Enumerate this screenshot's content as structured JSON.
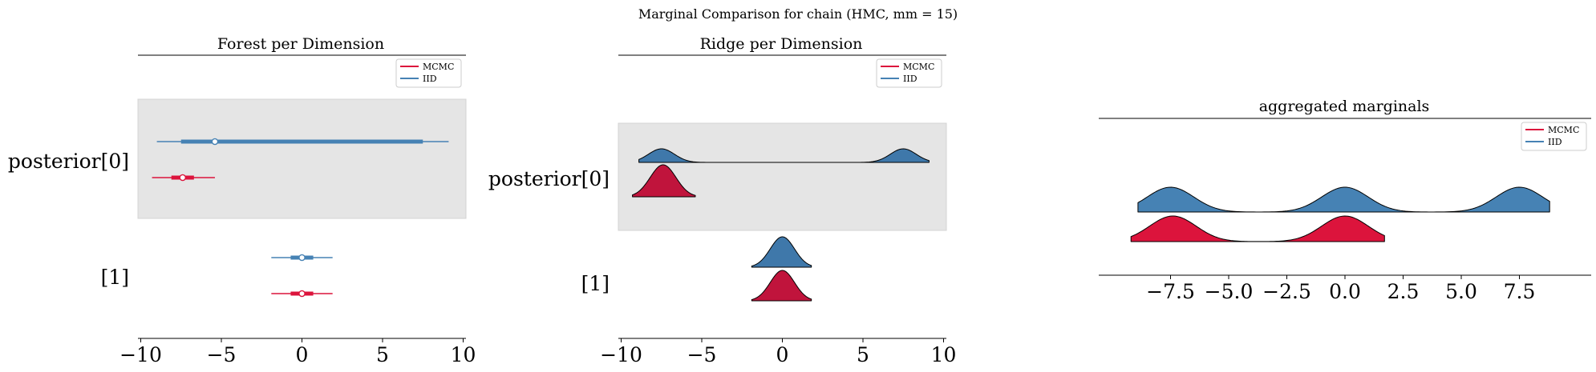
{
  "suptitle": "Marginal Comparison for chain (HMC, mm = 15)",
  "colors": {
    "mcmc": "#dc143c",
    "iid": "#4682b4",
    "band": "#e5e5e5",
    "ridge_mcmc": "#c0143c",
    "ridge_iid": "#3f78aa"
  },
  "chart_data": [
    {
      "type": "forest",
      "title": "Forest per Dimension",
      "xlim": [
        -10,
        10
      ],
      "xticks": [
        -10,
        -5,
        0,
        5,
        10
      ],
      "rows": [
        "posterior[0]",
        "[1]"
      ],
      "legend": {
        "placement": "top-right",
        "entries": [
          "MCMC",
          "IID"
        ]
      },
      "series": [
        {
          "name": "IID",
          "row": 0,
          "median": -5.4,
          "hdi_50": [
            -7.5,
            7.5
          ],
          "hdi_94": [
            -9.0,
            9.1
          ]
        },
        {
          "name": "MCMC",
          "row": 0,
          "median": -7.4,
          "hdi_50": [
            -8.1,
            -6.7
          ],
          "hdi_94": [
            -9.3,
            -5.4
          ]
        },
        {
          "name": "IID",
          "row": 1,
          "median": 0.0,
          "hdi_50": [
            -0.7,
            0.7
          ],
          "hdi_94": [
            -1.9,
            1.9
          ]
        },
        {
          "name": "MCMC",
          "row": 1,
          "median": 0.0,
          "hdi_50": [
            -0.7,
            0.7
          ],
          "hdi_94": [
            -1.9,
            1.9
          ]
        }
      ]
    },
    {
      "type": "ridgeplot",
      "title": "Ridge per Dimension",
      "xlim": [
        -10,
        10
      ],
      "xticks": [
        -10,
        -5,
        0,
        5,
        10
      ],
      "rows": [
        "posterior[0]",
        "[1]"
      ],
      "legend": {
        "placement": "top-right",
        "entries": [
          "MCMC",
          "IID"
        ]
      },
      "series": [
        {
          "name": "IID",
          "row": 0,
          "range": [
            -8.9,
            9.1
          ],
          "modes": [
            [
              -7.5,
              0.8,
              1
            ],
            [
              7.5,
              0.8,
              1
            ]
          ]
        },
        {
          "name": "MCMC",
          "row": 0,
          "range": [
            -9.3,
            -5.4
          ],
          "modes": [
            [
              -7.4,
              0.8,
              1
            ]
          ]
        },
        {
          "name": "IID",
          "row": 1,
          "range": [
            -1.9,
            1.8
          ],
          "modes": [
            [
              0.0,
              0.75,
              1
            ]
          ]
        },
        {
          "name": "MCMC",
          "row": 1,
          "range": [
            -1.9,
            1.8
          ],
          "modes": [
            [
              0.0,
              0.75,
              1
            ]
          ]
        }
      ]
    },
    {
      "type": "ridgeplot",
      "title": "aggregated marginals",
      "xlim": [
        -10,
        10
      ],
      "xticks": [
        -7.5,
        -5.0,
        -2.5,
        0.0,
        2.5,
        5.0,
        7.5
      ],
      "legend": {
        "placement": "top-right",
        "entries": [
          "MCMC",
          "IID"
        ]
      },
      "series": [
        {
          "name": "IID",
          "row": 0,
          "range": [
            -8.9,
            8.8
          ],
          "modes": [
            [
              -7.5,
              1.0,
              1
            ],
            [
              0.0,
              1.0,
              1
            ],
            [
              7.5,
              1.0,
              1
            ]
          ]
        },
        {
          "name": "MCMC",
          "row": 1,
          "range": [
            -9.2,
            1.7
          ],
          "modes": [
            [
              -7.4,
              1.0,
              1
            ],
            [
              0.0,
              1.0,
              1
            ]
          ]
        }
      ]
    }
  ]
}
